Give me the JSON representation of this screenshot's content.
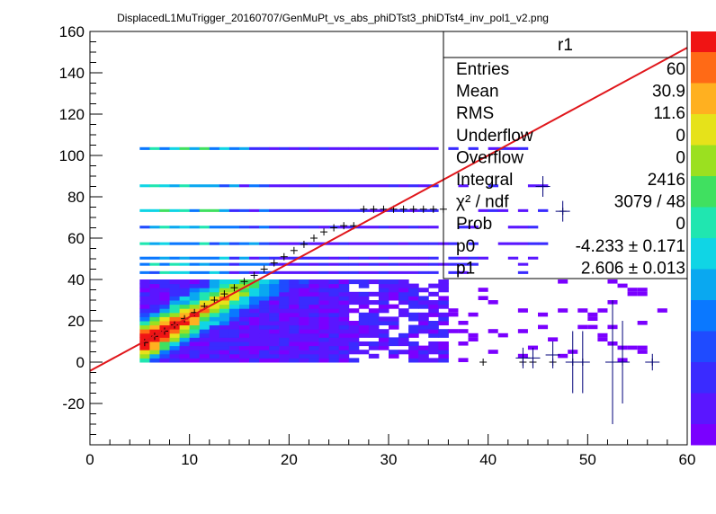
{
  "chart_data": {
    "type": "heatmap",
    "title": "DisplacedL1MuTrigger_20160707/GenMuPt_vs_abs_phiDTst3_phiDTst4_inv_pol1_v2.png",
    "xlabel": "",
    "ylabel": "",
    "xlim": [
      0,
      60
    ],
    "ylim": [
      -40,
      160
    ],
    "x_ticks": [
      "0",
      "10",
      "20",
      "30",
      "40",
      "50",
      "60"
    ],
    "y_ticks": [
      "-20",
      "0",
      "20",
      "40",
      "60",
      "80",
      "100",
      "120",
      "140",
      "160"
    ],
    "grid": false,
    "colorbar": "rainbow (purple low → red high), right side",
    "stats_box": {
      "name": "r1",
      "rows": [
        {
          "label": "Entries",
          "value": "60"
        },
        {
          "label": "Mean",
          "value": "30.9"
        },
        {
          "label": "RMS",
          "value": "11.6"
        },
        {
          "label": "Underflow",
          "value": "0"
        },
        {
          "label": "Overflow",
          "value": "0"
        },
        {
          "label": "Integral",
          "value": "2416"
        },
        {
          "label": "χ² / ndf",
          "value": "3079 / 48"
        },
        {
          "label": "Prob",
          "value": "0"
        },
        {
          "label": "p0",
          "value": "-4.233 ± 0.171"
        },
        {
          "label": "p1",
          "value": "2.606 ± 0.013"
        }
      ]
    },
    "fit_line": {
      "color": "#e0161b",
      "p0": -4.233,
      "p1": 2.606
    },
    "profile_points": [
      {
        "x": 5.5,
        "y": 9.5
      },
      {
        "x": 6.5,
        "y": 12.5
      },
      {
        "x": 7.5,
        "y": 15
      },
      {
        "x": 8.5,
        "y": 18
      },
      {
        "x": 9.5,
        "y": 21
      },
      {
        "x": 10.5,
        "y": 24
      },
      {
        "x": 11.5,
        "y": 27
      },
      {
        "x": 12.5,
        "y": 30
      },
      {
        "x": 13.5,
        "y": 33
      },
      {
        "x": 14.5,
        "y": 36
      },
      {
        "x": 15.5,
        "y": 39
      },
      {
        "x": 16.5,
        "y": 42
      },
      {
        "x": 17.5,
        "y": 45
      },
      {
        "x": 18.5,
        "y": 48
      },
      {
        "x": 19.5,
        "y": 51
      },
      {
        "x": 20.5,
        "y": 54
      },
      {
        "x": 21.5,
        "y": 57
      },
      {
        "x": 22.5,
        "y": 60
      },
      {
        "x": 23.5,
        "y": 63
      },
      {
        "x": 24.5,
        "y": 65
      },
      {
        "x": 25.5,
        "y": 66
      },
      {
        "x": 26.5,
        "y": 66
      },
      {
        "x": 27.5,
        "y": 74
      },
      {
        "x": 28.5,
        "y": 74
      },
      {
        "x": 29.5,
        "y": 74
      },
      {
        "x": 30.5,
        "y": 74
      },
      {
        "x": 31.5,
        "y": 74
      },
      {
        "x": 32.5,
        "y": 74
      },
      {
        "x": 33.5,
        "y": 74
      },
      {
        "x": 34.5,
        "y": 74
      },
      {
        "x": 35.5,
        "y": 74
      },
      {
        "x": 47.5,
        "y": 73
      },
      {
        "x": 45.5,
        "y": 85
      },
      {
        "x": 39.5,
        "y": 0
      },
      {
        "x": 43.5,
        "y": 0
      },
      {
        "x": 44.5,
        "y": 0
      },
      {
        "x": 46.5,
        "y": 0
      },
      {
        "x": 48.5,
        "y": 0
      },
      {
        "x": 49.5,
        "y": 0
      },
      {
        "x": 52.5,
        "y": 0
      },
      {
        "x": 53.5,
        "y": 0
      },
      {
        "x": 56.5,
        "y": 0
      }
    ],
    "error_bars": [
      {
        "x": 43.5,
        "lo": -3,
        "hi": 7
      },
      {
        "x": 44.5,
        "lo": -3,
        "hi": 7
      },
      {
        "x": 46.5,
        "lo": -3,
        "hi": 10
      },
      {
        "x": 48.5,
        "lo": -15,
        "hi": 15
      },
      {
        "x": 49.5,
        "lo": -15,
        "hi": 15
      },
      {
        "x": 52.5,
        "lo": -30,
        "hi": 30
      },
      {
        "x": 53.5,
        "lo": -20,
        "hi": 20
      },
      {
        "x": 56.5,
        "lo": -4,
        "hi": 4
      },
      {
        "x": 47.5,
        "lo": 68,
        "hi": 78
      },
      {
        "x": 45.5,
        "lo": 80,
        "hi": 90
      }
    ],
    "bands_y": [
      103,
      85,
      73,
      65,
      57,
      50,
      47,
      43
    ]
  }
}
